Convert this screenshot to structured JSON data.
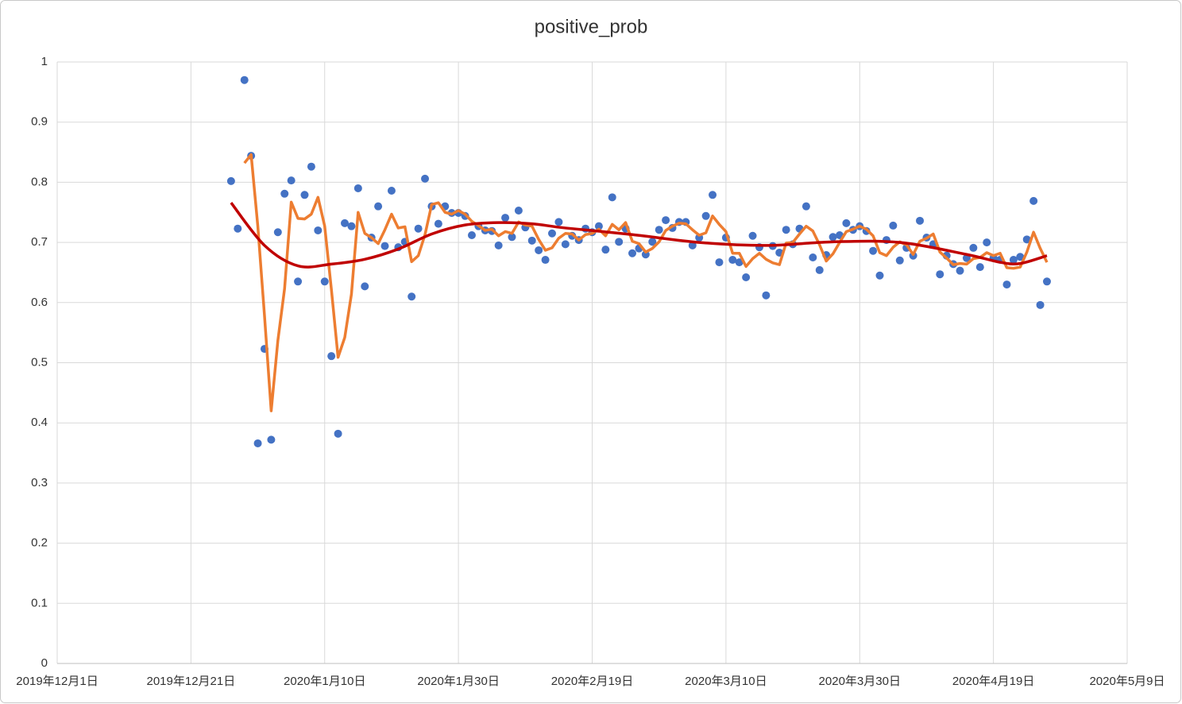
{
  "chart_data": {
    "type": "scatter",
    "title": "positive_prob",
    "x": [
      "2019-12-27",
      "2019-12-28",
      "2019-12-29",
      "2019-12-30",
      "2019-12-31",
      "2020-01-01",
      "2020-01-02",
      "2020-01-03",
      "2020-01-04",
      "2020-01-05",
      "2020-01-06",
      "2020-01-07",
      "2020-01-08",
      "2020-01-09",
      "2020-01-10",
      "2020-01-11",
      "2020-01-12",
      "2020-01-13",
      "2020-01-14",
      "2020-01-15",
      "2020-01-16",
      "2020-01-17",
      "2020-01-18",
      "2020-01-19",
      "2020-01-20",
      "2020-01-21",
      "2020-01-22",
      "2020-01-23",
      "2020-01-24",
      "2020-01-25",
      "2020-01-26",
      "2020-01-27",
      "2020-01-28",
      "2020-01-29",
      "2020-01-30",
      "2020-01-31",
      "2020-02-01",
      "2020-02-02",
      "2020-02-03",
      "2020-02-04",
      "2020-02-05",
      "2020-02-06",
      "2020-02-07",
      "2020-02-08",
      "2020-02-09",
      "2020-02-10",
      "2020-02-11",
      "2020-02-12",
      "2020-02-13",
      "2020-02-14",
      "2020-02-15",
      "2020-02-16",
      "2020-02-17",
      "2020-02-18",
      "2020-02-19",
      "2020-02-20",
      "2020-02-21",
      "2020-02-22",
      "2020-02-23",
      "2020-02-24",
      "2020-02-25",
      "2020-02-26",
      "2020-02-27",
      "2020-02-28",
      "2020-02-29",
      "2020-03-01",
      "2020-03-02",
      "2020-03-03",
      "2020-03-04",
      "2020-03-05",
      "2020-03-06",
      "2020-03-07",
      "2020-03-08",
      "2020-03-09",
      "2020-03-10",
      "2020-03-11",
      "2020-03-12",
      "2020-03-13",
      "2020-03-14",
      "2020-03-15",
      "2020-03-16",
      "2020-03-17",
      "2020-03-18",
      "2020-03-19",
      "2020-03-20",
      "2020-03-21",
      "2020-03-22",
      "2020-03-23",
      "2020-03-24",
      "2020-03-25",
      "2020-03-26",
      "2020-03-27",
      "2020-03-28",
      "2020-03-29",
      "2020-03-30",
      "2020-03-31",
      "2020-04-01",
      "2020-04-02",
      "2020-04-03",
      "2020-04-04",
      "2020-04-05",
      "2020-04-06",
      "2020-04-07",
      "2020-04-08",
      "2020-04-09",
      "2020-04-10",
      "2020-04-11",
      "2020-04-12",
      "2020-04-13",
      "2020-04-14",
      "2020-04-15",
      "2020-04-16",
      "2020-04-17",
      "2020-04-18",
      "2020-04-19",
      "2020-04-20",
      "2020-04-21",
      "2020-04-22",
      "2020-04-23",
      "2020-04-24",
      "2020-04-25",
      "2020-04-26",
      "2020-04-27"
    ],
    "xlim": [
      "2019-12-01",
      "2020-05-09"
    ],
    "xticks": [
      {
        "value": "2019-12-01",
        "label": "2019年12月1日"
      },
      {
        "value": "2019-12-21",
        "label": "2019年12月21日"
      },
      {
        "value": "2020-01-10",
        "label": "2020年1月10日"
      },
      {
        "value": "2020-01-30",
        "label": "2020年1月30日"
      },
      {
        "value": "2020-02-19",
        "label": "2020年2月19日"
      },
      {
        "value": "2020-03-10",
        "label": "2020年3月10日"
      },
      {
        "value": "2020-03-30",
        "label": "2020年3月30日"
      },
      {
        "value": "2020-04-19",
        "label": "2020年4月19日"
      },
      {
        "value": "2020-05-09",
        "label": "2020年5月9日"
      }
    ],
    "ylim": [
      0,
      1
    ],
    "yticks": [
      0,
      0.1,
      0.2,
      0.3,
      0.4,
      0.5,
      0.6,
      0.7,
      0.8,
      0.9,
      1
    ],
    "grid": true,
    "series": [
      {
        "type": "scatter",
        "color": "#4472c4",
        "values": [
          0.802,
          0.723,
          0.97,
          0.844,
          0.366,
          0.523,
          0.372,
          0.717,
          0.781,
          0.803,
          0.635,
          0.779,
          0.826,
          0.72,
          0.635,
          0.511,
          0.382,
          0.732,
          0.727,
          0.79,
          0.627,
          0.708,
          0.76,
          0.694,
          0.786,
          0.692,
          0.701,
          0.61,
          0.723,
          0.806,
          0.76,
          0.731,
          0.76,
          0.749,
          0.749,
          0.744,
          0.712,
          0.727,
          0.72,
          0.719,
          0.695,
          0.741,
          0.709,
          0.753,
          0.725,
          0.703,
          0.687,
          0.671,
          0.715,
          0.734,
          0.697,
          0.711,
          0.704,
          0.723,
          0.717,
          0.727,
          0.688,
          0.775,
          0.701,
          0.723,
          0.682,
          0.69,
          0.68,
          0.701,
          0.721,
          0.737,
          0.724,
          0.734,
          0.734,
          0.695,
          0.708,
          0.744,
          0.779,
          0.667,
          0.708,
          0.671,
          0.667,
          0.642,
          0.711,
          0.692,
          0.612,
          0.694,
          0.683,
          0.721,
          0.697,
          0.723,
          0.76,
          0.675,
          0.654,
          0.679,
          0.709,
          0.712,
          0.732,
          0.721,
          0.727,
          0.719,
          0.686,
          0.645,
          0.704,
          0.728,
          0.67,
          0.691,
          0.678,
          0.736,
          0.708,
          0.697,
          0.647,
          0.678,
          0.664,
          0.653,
          0.674,
          0.691,
          0.659,
          0.7,
          0.674,
          0.671,
          0.63,
          0.671,
          0.676,
          0.705,
          0.769,
          0.596,
          0.635
        ]
      },
      {
        "type": "line",
        "color": "#ed7d31",
        "values": [
          null,
          null,
          0.832,
          0.846,
          0.727,
          0.578,
          0.42,
          0.537,
          0.623,
          0.767,
          0.74,
          0.739,
          0.747,
          0.775,
          0.727,
          0.622,
          0.509,
          0.542,
          0.614,
          0.75,
          0.715,
          0.708,
          0.698,
          0.721,
          0.747,
          0.724,
          0.726,
          0.668,
          0.678,
          0.713,
          0.763,
          0.766,
          0.75,
          0.747,
          0.753,
          0.747,
          0.735,
          0.728,
          0.72,
          0.722,
          0.711,
          0.718,
          0.715,
          0.734,
          0.729,
          0.727,
          0.705,
          0.687,
          0.691,
          0.707,
          0.715,
          0.714,
          0.704,
          0.713,
          0.715,
          0.722,
          0.711,
          0.73,
          0.721,
          0.733,
          0.702,
          0.698,
          0.684,
          0.69,
          0.701,
          0.72,
          0.727,
          0.732,
          0.731,
          0.721,
          0.712,
          0.716,
          0.744,
          0.73,
          0.718,
          0.682,
          0.682,
          0.66,
          0.673,
          0.682,
          0.672,
          0.666,
          0.663,
          0.699,
          0.7,
          0.714,
          0.727,
          0.719,
          0.696,
          0.669,
          0.681,
          0.7,
          0.718,
          0.722,
          0.727,
          0.722,
          0.711,
          0.683,
          0.678,
          0.692,
          0.701,
          0.696,
          0.68,
          0.702,
          0.707,
          0.714,
          0.684,
          0.674,
          0.663,
          0.665,
          0.664,
          0.673,
          0.675,
          0.683,
          0.678,
          0.682,
          0.658,
          0.657,
          0.659,
          0.684,
          0.717,
          0.69,
          0.667
        ]
      },
      {
        "type": "trend",
        "color": "#c00000",
        "x": [
          "2019-12-27",
          "2020-01-01",
          "2020-01-06",
          "2020-01-11",
          "2020-01-16",
          "2020-01-21",
          "2020-01-26",
          "2020-01-31",
          "2020-02-05",
          "2020-02-10",
          "2020-02-15",
          "2020-02-25",
          "2020-03-06",
          "2020-03-16",
          "2020-03-26",
          "2020-04-05",
          "2020-04-15",
          "2020-04-20",
          "2020-04-23",
          "2020-04-27"
        ],
        "values": [
          0.766,
          0.695,
          0.661,
          0.664,
          0.672,
          0.689,
          0.714,
          0.729,
          0.733,
          0.731,
          0.724,
          0.713,
          0.7,
          0.695,
          0.701,
          0.7,
          0.68,
          0.667,
          0.665,
          0.678
        ]
      }
    ]
  }
}
